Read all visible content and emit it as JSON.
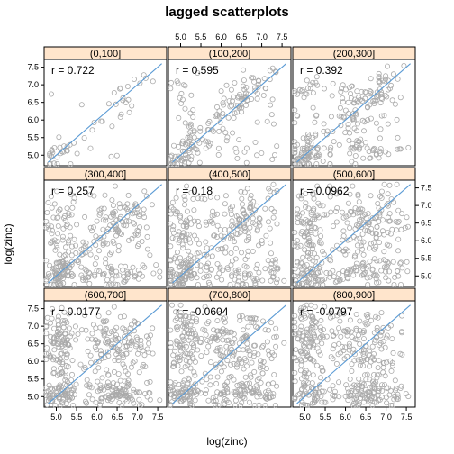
{
  "chart_data": {
    "type": "scatter",
    "title": "lagged scatterplots",
    "xlabel": "log(zinc)",
    "ylabel": "log(zinc)",
    "xlim": [
      4.7,
      7.72
    ],
    "ylim": [
      4.7,
      7.72
    ],
    "ticks": [
      5.0,
      5.5,
      6.0,
      6.5,
      7.0,
      7.5
    ],
    "tick_labels": [
      "5.0",
      "5.5",
      "6.0",
      "6.5",
      "7.0",
      "7.5"
    ],
    "colors": {
      "strip": "#ffe5cc",
      "points": "#aaaaaa",
      "line": "#5b9bd5",
      "frame": "#000000"
    },
    "panels": [
      {
        "label": "(0,100]",
        "r_text": "r = 0.722",
        "n": 55,
        "r": 0.722,
        "seed": 11
      },
      {
        "label": "(100,200]",
        "r_text": "r = 0.595",
        "n": 190,
        "r": 0.595,
        "seed": 23
      },
      {
        "label": "(200,300]",
        "r_text": "r = 0.392",
        "n": 260,
        "r": 0.392,
        "seed": 37
      },
      {
        "label": "(300,400]",
        "r_text": "r = 0.257",
        "n": 330,
        "r": 0.257,
        "seed": 41
      },
      {
        "label": "(400,500]",
        "r_text": "r = 0.18",
        "n": 360,
        "r": 0.18,
        "seed": 53
      },
      {
        "label": "(500,600]",
        "r_text": "r = 0.0962",
        "n": 380,
        "r": 0.0962,
        "seed": 67
      },
      {
        "label": "(600,700]",
        "r_text": "r = 0.0177",
        "n": 420,
        "r": 0.0177,
        "seed": 71
      },
      {
        "label": "(700,800]",
        "r_text": "r = -0.0604",
        "n": 430,
        "r": -0.0604,
        "seed": 83
      },
      {
        "label": "(800,900]",
        "r_text": "r = -0.0797",
        "n": 420,
        "r": -0.0797,
        "seed": 97
      }
    ]
  }
}
